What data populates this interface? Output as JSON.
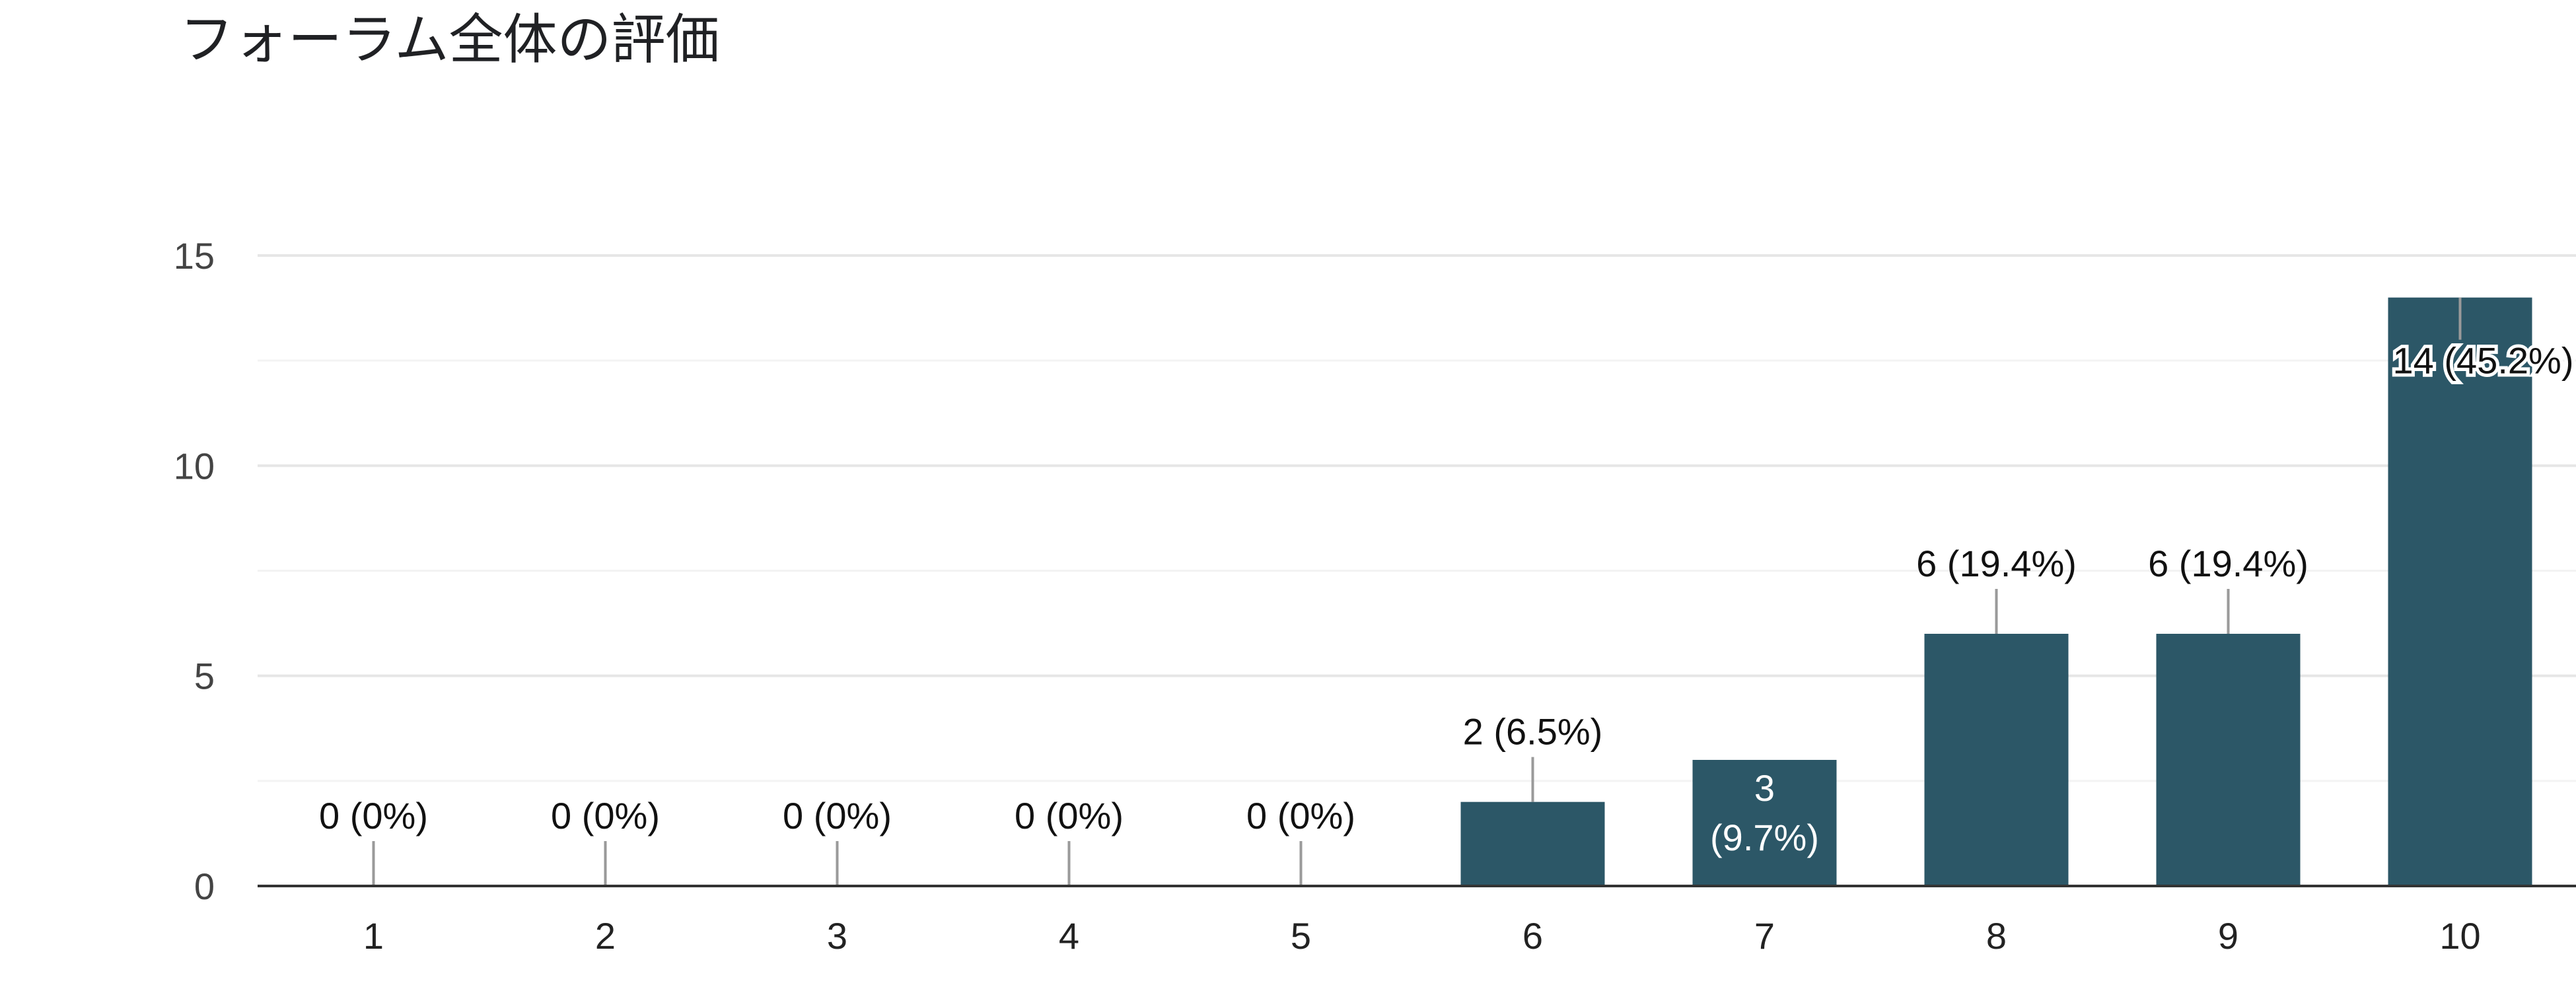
{
  "chart_data": {
    "type": "bar",
    "title": "フォーラム全体の評価",
    "xlabel": "",
    "ylabel": "",
    "categories": [
      "1",
      "2",
      "3",
      "4",
      "5",
      "6",
      "7",
      "8",
      "9",
      "10"
    ],
    "values": [
      0,
      0,
      0,
      0,
      0,
      2,
      3,
      6,
      6,
      14
    ],
    "data_labels": [
      "0 (0%)",
      "0 (0%)",
      "0 (0%)",
      "0 (0%)",
      "0 (0%)",
      "2 (6.5%)",
      "3 (9.7%)",
      "6 (19.4%)",
      "6 (19.4%)",
      "14 (45.2%)"
    ],
    "ylim": [
      0,
      15
    ],
    "yticks": [
      "0",
      "5",
      "10",
      "15"
    ],
    "grid": true,
    "legend": "none",
    "bar_color": "#2c5767"
  }
}
